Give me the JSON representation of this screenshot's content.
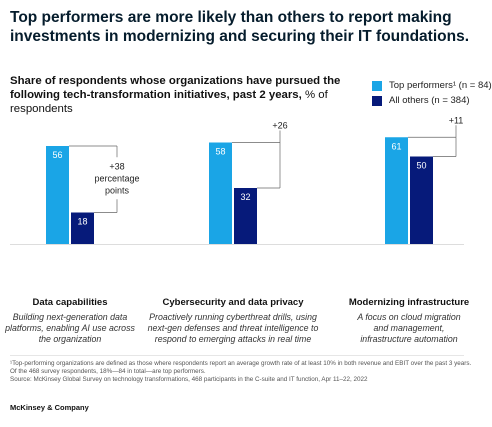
{
  "headline": "Top performers are more likely than others to report making investments in modernizing and securing their IT foundations.",
  "subtitle_bold": "Share of respondents whose organizations have pursued the following tech-transformation initiatives, past 2 years,",
  "subtitle_regular": " % of respondents",
  "colors": {
    "top": "#1aa5e6",
    "others": "#061a7a",
    "annotation": "#666666"
  },
  "chart_data": {
    "type": "bar",
    "ylim": [
      0,
      70
    ],
    "series": [
      {
        "name": "Top performers¹ (n = 84)",
        "values": [
          56,
          58,
          61
        ]
      },
      {
        "name": "All others (n = 384)",
        "values": [
          18,
          32,
          50
        ]
      }
    ],
    "categories": [
      "Data capabilities",
      "Cybersecurity and data privacy",
      "Modernizing infrastructure"
    ],
    "descriptions": [
      [
        "Building next-generation data",
        "platforms, enabling AI use across",
        "the organization"
      ],
      [
        "Proactively running cyberthreat drills, using",
        "next-gen defenses and threat intelligence to",
        "respond to emerging attacks in real time"
      ],
      [
        "A focus on cloud migration",
        "and management,",
        "infrastructure automation"
      ]
    ],
    "differences": [
      [
        "+38",
        "percentage",
        "points"
      ],
      [
        "+26"
      ],
      [
        "+11"
      ]
    ]
  },
  "footnote": "¹Top-performing organizations are defined as those where respondents report an average growth rate of at least 10% in both revenue and EBIT over the past 3 years. Of the 468 survey respondents, 18%—84 in total—are top performers.",
  "source": "Source: McKinsey Global Survey on technology transformations, 468 participants in the C-suite and IT function, Apr 11–22, 2022",
  "brand": "McKinsey & Company"
}
